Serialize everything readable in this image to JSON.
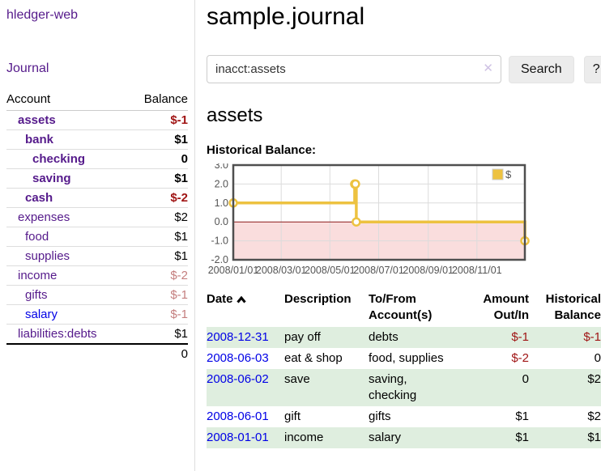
{
  "app": {
    "title": "hledger-web"
  },
  "sidebar": {
    "journal_link": "Journal",
    "accounts_table": {
      "headers": {
        "account": "Account",
        "balance": "Balance"
      },
      "rows": [
        {
          "name": "assets",
          "balance": "$-1",
          "indent": 1,
          "bold": true
        },
        {
          "name": "bank",
          "balance": "$1",
          "indent": 2,
          "bold": true
        },
        {
          "name": "checking",
          "balance": "0",
          "indent": 3,
          "bold": true
        },
        {
          "name": "saving",
          "balance": "$1",
          "indent": 3,
          "bold": true
        },
        {
          "name": "cash",
          "balance": "$-2",
          "indent": 2,
          "bold": true
        },
        {
          "name": "expenses",
          "balance": "$2",
          "indent": 1,
          "bold": false
        },
        {
          "name": "food",
          "balance": "$1",
          "indent": 2,
          "bold": false
        },
        {
          "name": "supplies",
          "balance": "$1",
          "indent": 2,
          "bold": false
        },
        {
          "name": "income",
          "balance": "$-2",
          "indent": 1,
          "bold": false
        },
        {
          "name": "gifts",
          "balance": "$-1",
          "indent": 2,
          "bold": false
        },
        {
          "name": "salary",
          "balance": "$-1",
          "indent": 2,
          "bold": false,
          "link_color": "blue"
        },
        {
          "name": "liabilities:debts",
          "balance": "$1",
          "indent": 1,
          "bold": false
        }
      ],
      "total": "0"
    }
  },
  "main": {
    "title": "sample.journal",
    "search": {
      "value": "inacct:assets",
      "clear_icon": "✕",
      "button": "Search",
      "help_button": "?"
    },
    "account_heading": "assets",
    "chart_label": "Historical Balance:"
  },
  "chart_data": {
    "type": "line",
    "title": "Historical Balance",
    "step": true,
    "series": [
      {
        "name": "$",
        "color": "#edc240",
        "points": [
          [
            "2008-01-01",
            1
          ],
          [
            "2008-06-01",
            2
          ],
          [
            "2008-06-02",
            2
          ],
          [
            "2008-06-03",
            0
          ],
          [
            "2008-12-31",
            -1
          ]
        ]
      }
    ],
    "xlim": [
      "2008-01-01",
      "2008-12-31"
    ],
    "ylim": [
      -2,
      3
    ],
    "xticks": [
      "2008/01/01",
      "2008/03/01",
      "2008/05/01",
      "2008/07/01",
      "2008/09/01",
      "2008/11/01"
    ],
    "yticks": [
      "3.0",
      "2.0",
      "1.0",
      "0.0",
      "-1.0",
      "-2.0"
    ],
    "legend": "$",
    "legend_position": "top-right",
    "grid": true,
    "negative_fill": "#fadddd",
    "zero_line_color": "#8b1a1a",
    "grid_color": "#dcdcdc",
    "border_color": "#4f4f4f"
  },
  "register_table": {
    "headers": [
      "Date",
      "Description",
      "To/From Account(s)",
      "Amount Out/In",
      "Historical Balance"
    ],
    "sort_icon": "chevron-up",
    "rows": [
      {
        "date": "2008-12-31",
        "description": "pay off",
        "accounts": "debts",
        "amount": "$-1",
        "balance": "$-1"
      },
      {
        "date": "2008-06-03",
        "description": "eat & shop",
        "accounts": "food, supplies",
        "amount": "$-2",
        "balance": "0"
      },
      {
        "date": "2008-06-02",
        "description": "save",
        "accounts": "saving, checking",
        "amount": "0",
        "balance": "$2"
      },
      {
        "date": "2008-06-01",
        "description": "gift",
        "accounts": "gifts",
        "amount": "$1",
        "balance": "$2"
      },
      {
        "date": "2008-01-01",
        "description": "income",
        "accounts": "salary",
        "amount": "$1",
        "balance": "$1"
      }
    ]
  },
  "colors": {
    "link_purple": "#551a8b",
    "link_blue": "#0000e6",
    "negative_strong": "#a01515",
    "negative_soft": "#c47e7e",
    "row_stripe_green": "#dfeedf",
    "chart_line": "#edc240",
    "chart_negative_fill": "#fadddd",
    "chart_zero_line": "#8b1a1a"
  }
}
